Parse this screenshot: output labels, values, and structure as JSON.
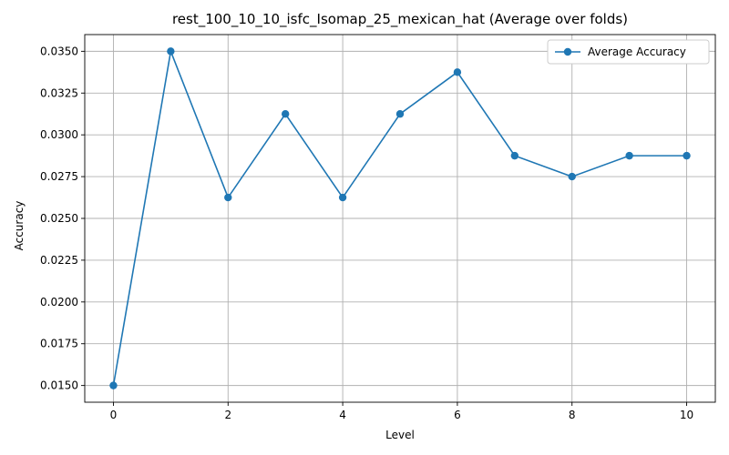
{
  "chart_data": {
    "type": "line",
    "title": "rest_100_10_10_isfc_Isomap_25_mexican_hat (Average over folds)",
    "xlabel": "Level",
    "ylabel": "Accuracy",
    "x": [
      0,
      1,
      2,
      3,
      4,
      5,
      6,
      7,
      8,
      9,
      10
    ],
    "series": [
      {
        "name": "Average Accuracy",
        "color": "#1f77b4",
        "marker": "circle",
        "values": [
          0.015,
          0.035,
          0.02625,
          0.03125,
          0.02625,
          0.03125,
          0.03375,
          0.02875,
          0.0275,
          0.02875,
          0.02875
        ]
      }
    ],
    "xlim": [
      -0.5,
      10.5
    ],
    "ylim": [
      0.014,
      0.036
    ],
    "xticks": [
      0,
      2,
      4,
      6,
      8,
      10
    ],
    "xtick_labels": [
      "0",
      "2",
      "4",
      "6",
      "8",
      "10"
    ],
    "yticks": [
      0.015,
      0.0175,
      0.02,
      0.0225,
      0.025,
      0.0275,
      0.03,
      0.0325,
      0.035
    ],
    "ytick_labels": [
      "0.0150",
      "0.0175",
      "0.0200",
      "0.0225",
      "0.0250",
      "0.0275",
      "0.0300",
      "0.0325",
      "0.0350"
    ],
    "grid": true,
    "legend_position": "top-right"
  }
}
